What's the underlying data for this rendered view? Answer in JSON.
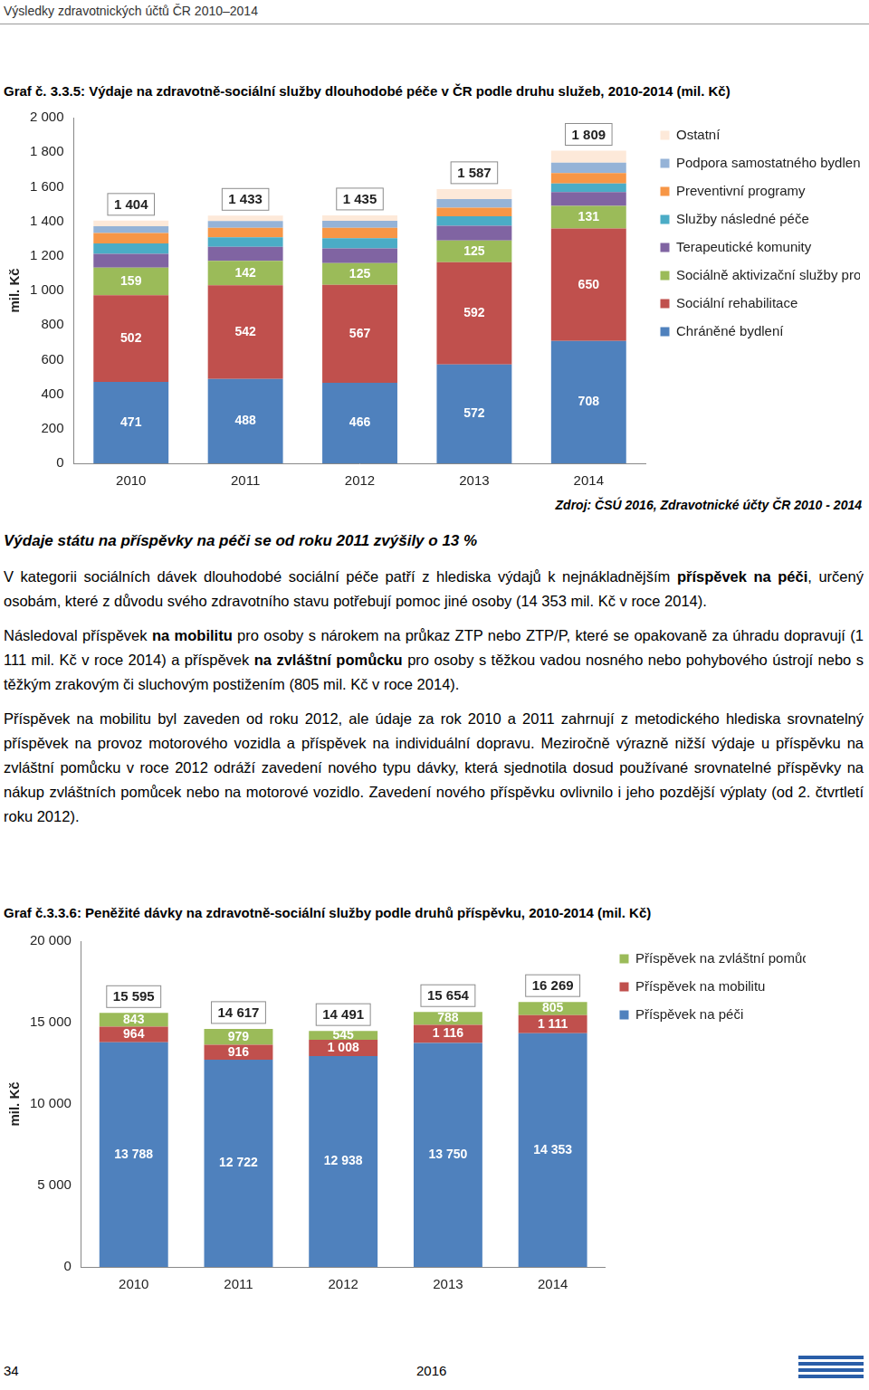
{
  "header": "Výsledky zdravotnických účtů ČR 2010–2014",
  "source": "Zdroj: ČSÚ 2016, Zdravotnické účty ČR 2010 - 2014",
  "heading": "Výdaje státu na příspěvky na péči se od roku 2011 zvýšily o 13 %",
  "paragraphs": [
    [
      {
        "text": "V kategorii sociálních dávek dlouhodobé sociální péče patří z hlediska výdajů k nejnákladnějším ",
        "bold": false
      },
      {
        "text": "příspěvek na péči",
        "bold": true
      },
      {
        "text": ", určený osobám, které z důvodu svého zdravotního stavu potřebují pomoc jiné osoby (14 353 mil. Kč v roce 2014).",
        "bold": false
      }
    ],
    [
      {
        "text": "Následoval příspěvek ",
        "bold": false
      },
      {
        "text": "na mobilitu",
        "bold": true
      },
      {
        "text": " pro osoby s nárokem na průkaz ZTP nebo ZTP/P, které se opakovaně za úhradu dopravují (1 111 mil. Kč v roce 2014) a příspěvek ",
        "bold": false
      },
      {
        "text": "na zvláštní pomůcku",
        "bold": true
      },
      {
        "text": " pro osoby s těžkou vadou nosného nebo pohybového ústrojí nebo s těžkým zrakovým či sluchovým postižením (805 mil. Kč v roce 2014).",
        "bold": false
      }
    ],
    [
      {
        "text": "Příspěvek na mobilitu byl zaveden od roku 2012, ale údaje za rok 2010 a 2011 zahrnují z metodického hlediska srovnatelný příspěvek na provoz motorového vozidla a příspěvek na individuální dopravu. Meziročně výrazně nižší výdaje u příspěvku na zvláštní pomůcku v roce 2012 odráží zavedení nového typu dávky, která sjednotila dosud používané srovnatelné příspěvky na nákup zvláštních pomůcek nebo na motorové vozidlo. Zavedení nového příspěvku ovlivnilo i jeho pozdější výplaty (od 2. čtvrtletí roku 2012).",
        "bold": false
      }
    ]
  ],
  "footer": {
    "page": "34",
    "year": "2016"
  },
  "chart_data": [
    {
      "type": "bar",
      "title": "Graf č. 3.3.5: Výdaje na zdravotně-sociální služby dlouhodobé péče v ČR podle druhu služeb, 2010-2014 (mil. Kč)",
      "y_label": "mil. Kč",
      "stacked": true,
      "grid": false,
      "legend": "right",
      "categories": [
        "2010",
        "2011",
        "2012",
        "2013",
        "2014"
      ],
      "series": [
        {
          "name": "Chráněné bydlení",
          "color": "#4f81bd",
          "values": [
            471,
            488,
            466,
            572,
            708
          ],
          "data_labels": true
        },
        {
          "name": "Sociální rehabilitace",
          "color": "#c0504d",
          "values": [
            502,
            542,
            567,
            592,
            650
          ],
          "data_labels": true
        },
        {
          "name": "Sociálně aktivizační služby pro osoby se ZP",
          "color": "#9bbb59",
          "values": [
            159,
            142,
            125,
            125,
            131
          ],
          "data_labels": true
        },
        {
          "name": "Terapeutické komunity",
          "color": "#8064a2",
          "values": [
            80,
            80,
            85,
            85,
            80
          ]
        },
        {
          "name": "Služby následné péče",
          "color": "#4bacc6",
          "values": [
            60,
            55,
            60,
            55,
            50
          ]
        },
        {
          "name": "Preventivní programy",
          "color": "#f79646",
          "values": [
            60,
            55,
            60,
            50,
            60
          ]
        },
        {
          "name": "Podpora samostatného bydlení",
          "color": "#95b3d7",
          "values": [
            40,
            40,
            40,
            50,
            60
          ]
        },
        {
          "name": "Ostatní",
          "color": "#fde9d9",
          "values": [
            32,
            31,
            32,
            58,
            70
          ]
        }
      ],
      "totals": {
        "values": [
          1404,
          1433,
          1435,
          1587,
          1809
        ],
        "value_labels": [
          "1 404",
          "1 433",
          "1 435",
          "1 587",
          "1 809"
        ]
      },
      "ylim": [
        0,
        2000
      ],
      "yticks": [
        0,
        200,
        400,
        600,
        800,
        {
          "value": 1000,
          "label": "1 000"
        },
        {
          "value": 1200,
          "label": "1 200"
        },
        {
          "value": 1400,
          "label": "1 400"
        },
        {
          "value": 1600,
          "label": "1 600"
        },
        {
          "value": 1800,
          "label": "1 800"
        },
        {
          "value": 2000,
          "label": "2 000"
        }
      ]
    },
    {
      "type": "bar",
      "title": "Graf č.3.3.6: Peněžité dávky na zdravotně-sociální služby podle druhů příspěvku, 2010-2014 (mil. Kč)",
      "y_label": "mil. Kč",
      "stacked": true,
      "grid": false,
      "legend": "right",
      "categories": [
        "2010",
        "2011",
        "2012",
        "2013",
        "2014"
      ],
      "series": [
        {
          "name": "Příspěvek na péči",
          "color": "#4f81bd",
          "values": [
            13788,
            12722,
            12938,
            13750,
            14353
          ],
          "data_labels": true,
          "value_labels": [
            "13 788",
            "12 722",
            "12 938",
            "13 750",
            "14 353"
          ]
        },
        {
          "name": "Příspěvek na mobilitu",
          "color": "#c0504d",
          "values": [
            964,
            916,
            1008,
            1116,
            1111
          ],
          "data_labels": true,
          "value_labels": [
            "964",
            "916",
            "1 008",
            "1 116",
            "1 111"
          ]
        },
        {
          "name": "Příspěvek na zvláštní pomůcky",
          "color": "#9bbb59",
          "values": [
            843,
            979,
            545,
            788,
            805
          ],
          "data_labels": true
        }
      ],
      "totals": {
        "values": [
          15595,
          14617,
          14491,
          15654,
          16269
        ],
        "value_labels": [
          "15 595",
          "14 617",
          "14 491",
          "15 654",
          "16 269"
        ]
      },
      "ylim": [
        0,
        20000
      ],
      "yticks": [
        0,
        {
          "value": 5000,
          "label": "5 000"
        },
        {
          "value": 10000,
          "label": "10 000"
        },
        {
          "value": 15000,
          "label": "15 000"
        },
        {
          "value": 20000,
          "label": "20 000"
        }
      ]
    }
  ]
}
